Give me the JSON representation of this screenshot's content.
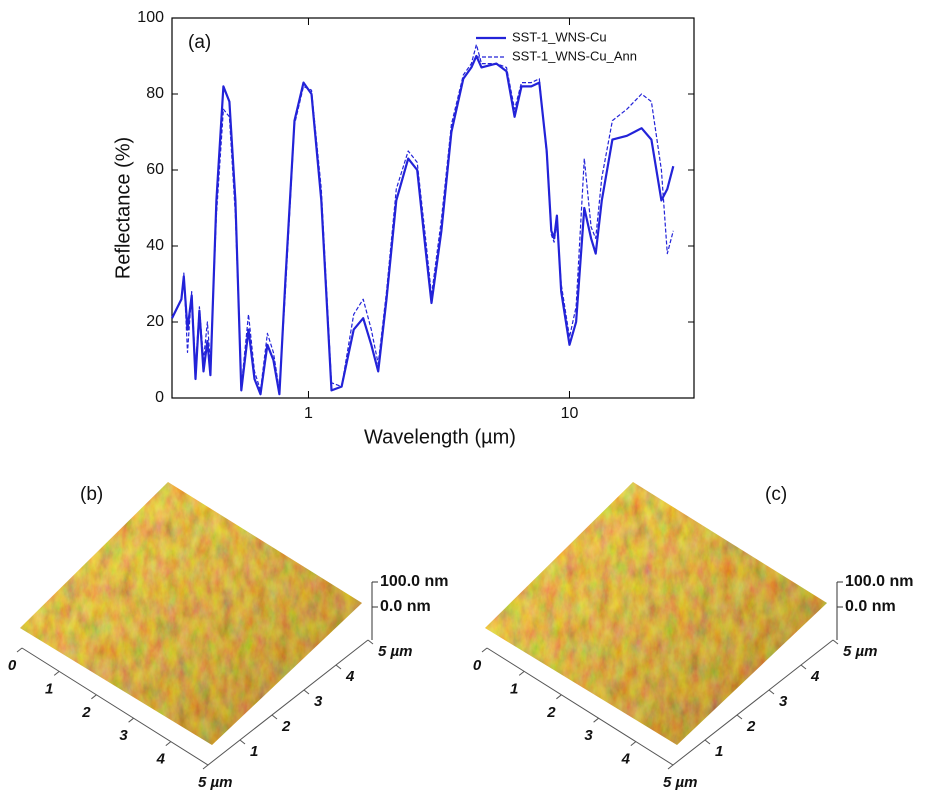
{
  "chart_data": {
    "type": "line",
    "title": "(a)",
    "x_label": "Wavelength (µm)",
    "y_label": "Reflectance (%)",
    "xscale": "log",
    "xlim": [
      0.3,
      30
    ],
    "xticks": [
      1,
      10
    ],
    "ylim": [
      0,
      100
    ],
    "yticks": [
      0,
      20,
      40,
      60,
      80,
      100
    ],
    "legend": "upper right",
    "x": [
      0.3,
      0.326,
      0.333,
      0.344,
      0.357,
      0.369,
      0.382,
      0.396,
      0.41,
      0.421,
      0.444,
      0.472,
      0.498,
      0.525,
      0.553,
      0.589,
      0.621,
      0.655,
      0.696,
      0.734,
      0.774,
      0.816,
      0.884,
      0.957,
      1.027,
      1.12,
      1.225,
      1.34,
      1.49,
      1.62,
      1.74,
      1.85,
      1.99,
      2.17,
      2.41,
      2.61,
      2.81,
      2.96,
      3.23,
      3.53,
      3.92,
      4.21,
      4.4,
      4.6,
      5.25,
      5.74,
      6.16,
      6.55,
      7.14,
      7.66,
      8.18,
      8.52,
      8.73,
      8.95,
      9.3,
      10,
      10.6,
      11.4,
      12.1,
      12.6,
      13.3,
      14.6,
      16.6,
      18.9,
      20.6,
      22.5,
      23.7,
      25
    ],
    "series": [
      {
        "name": "SST-1_WNS-Cu",
        "color": "#2323d8",
        "dash": false,
        "values": [
          21,
          26,
          32,
          18,
          27,
          5,
          23,
          7,
          15,
          6,
          52,
          82,
          78,
          52,
          2,
          18,
          5,
          1,
          14,
          10,
          1,
          31,
          73,
          83,
          80,
          52,
          2,
          3,
          18,
          21,
          14,
          7,
          26,
          52,
          63,
          60,
          39,
          25,
          44,
          70,
          84,
          87,
          90,
          87,
          88,
          86,
          74,
          82,
          82,
          83,
          65,
          44,
          42,
          48,
          28,
          14,
          20,
          50,
          42,
          38,
          52,
          68,
          69,
          71,
          68,
          52,
          55,
          61
        ]
      },
      {
        "name": "SST-1_WNS-Cu_Ann",
        "color": "#2323d8",
        "dash": true,
        "values": [
          null,
          null,
          33,
          12,
          28,
          8,
          24,
          10,
          20,
          9,
          48,
          76,
          74,
          48,
          3,
          22,
          7,
          2,
          17,
          12,
          2,
          28,
          72,
          82,
          81,
          55,
          4,
          3,
          22,
          26,
          18,
          9,
          28,
          55,
          65,
          62,
          42,
          27,
          47,
          72,
          85,
          88,
          93,
          88,
          88,
          87,
          76,
          83,
          83,
          84,
          64,
          43,
          41,
          46,
          30,
          16,
          24,
          63,
          45,
          42,
          58,
          73,
          76,
          80,
          78,
          60,
          38,
          44
        ]
      }
    ]
  },
  "afm_images": [
    {
      "label": "(b)",
      "z_scale": [
        "100.0 nm",
        "0.0 nm"
      ],
      "x_axis": [
        "0",
        "1",
        "2",
        "3",
        "4",
        "5 µm"
      ],
      "y_axis": [
        "1",
        "2",
        "3",
        "4",
        "5 µm"
      ]
    },
    {
      "label": "(c)",
      "z_scale": [
        "100.0 nm",
        "0.0 nm"
      ],
      "x_axis": [
        "0",
        "1",
        "2",
        "3",
        "4",
        "5 µm"
      ],
      "y_axis": [
        "1",
        "2",
        "3",
        "4",
        "5 µm"
      ]
    }
  ]
}
